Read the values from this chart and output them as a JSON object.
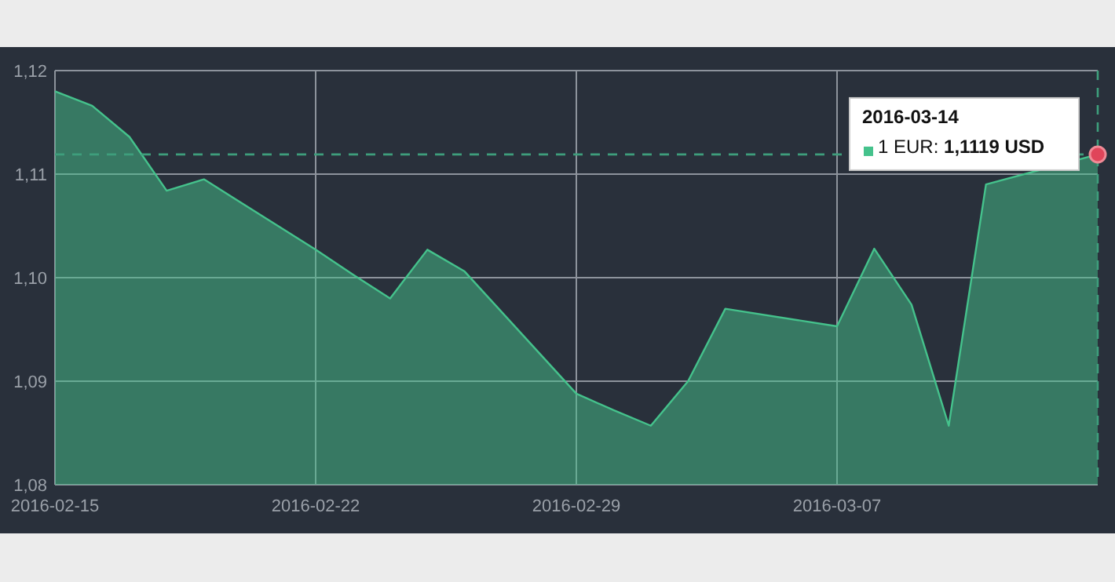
{
  "chart_data": {
    "type": "area",
    "x": [
      "2016-02-15",
      "2016-02-16",
      "2016-02-17",
      "2016-02-18",
      "2016-02-19",
      "2016-02-22",
      "2016-02-23",
      "2016-02-24",
      "2016-02-25",
      "2016-02-26",
      "2016-02-29",
      "2016-03-01",
      "2016-03-02",
      "2016-03-03",
      "2016-03-04",
      "2016-03-07",
      "2016-03-08",
      "2016-03-09",
      "2016-03-10",
      "2016-03-11",
      "2016-03-14"
    ],
    "series": [
      {
        "color": "#45c28c",
        "values": [
          1.118,
          1.1166,
          1.1136,
          1.1084,
          1.1095,
          1.1027,
          1.1003,
          1.098,
          1.1027,
          1.1006,
          1.0888,
          1.0872,
          1.0857,
          1.09,
          1.097,
          1.0953,
          1.1028,
          1.0974,
          1.0857,
          1.109,
          1.1119
        ]
      }
    ],
    "xlim": [
      "2016-02-15",
      "2016-03-14"
    ],
    "xticks": [
      "2016-02-15",
      "2016-02-22",
      "2016-02-29",
      "2016-03-07"
    ],
    "ylim": [
      1.08,
      1.12
    ],
    "yticks": [
      {
        "value": 1.08,
        "label": "1,08"
      },
      {
        "value": 1.09,
        "label": "1,09"
      },
      {
        "value": 1.1,
        "label": "1,10"
      },
      {
        "value": 1.11,
        "label": "1,11"
      },
      {
        "value": 1.12,
        "label": "1,12"
      }
    ],
    "grid": true,
    "ref_lines": [
      {
        "axis": "y",
        "value": 1.1119,
        "color": "#3e9e7c",
        "line_style": "dashed"
      },
      {
        "axis": "x",
        "value": "2016-03-14",
        "color": "#3e9e7c",
        "line_style": "dashed"
      }
    ],
    "annotations": [
      {
        "text": "2016-03-14\n1 EUR: 1,1119 USD",
        "x": "2016-03-14",
        "y": 1.1119
      }
    ]
  }
}
